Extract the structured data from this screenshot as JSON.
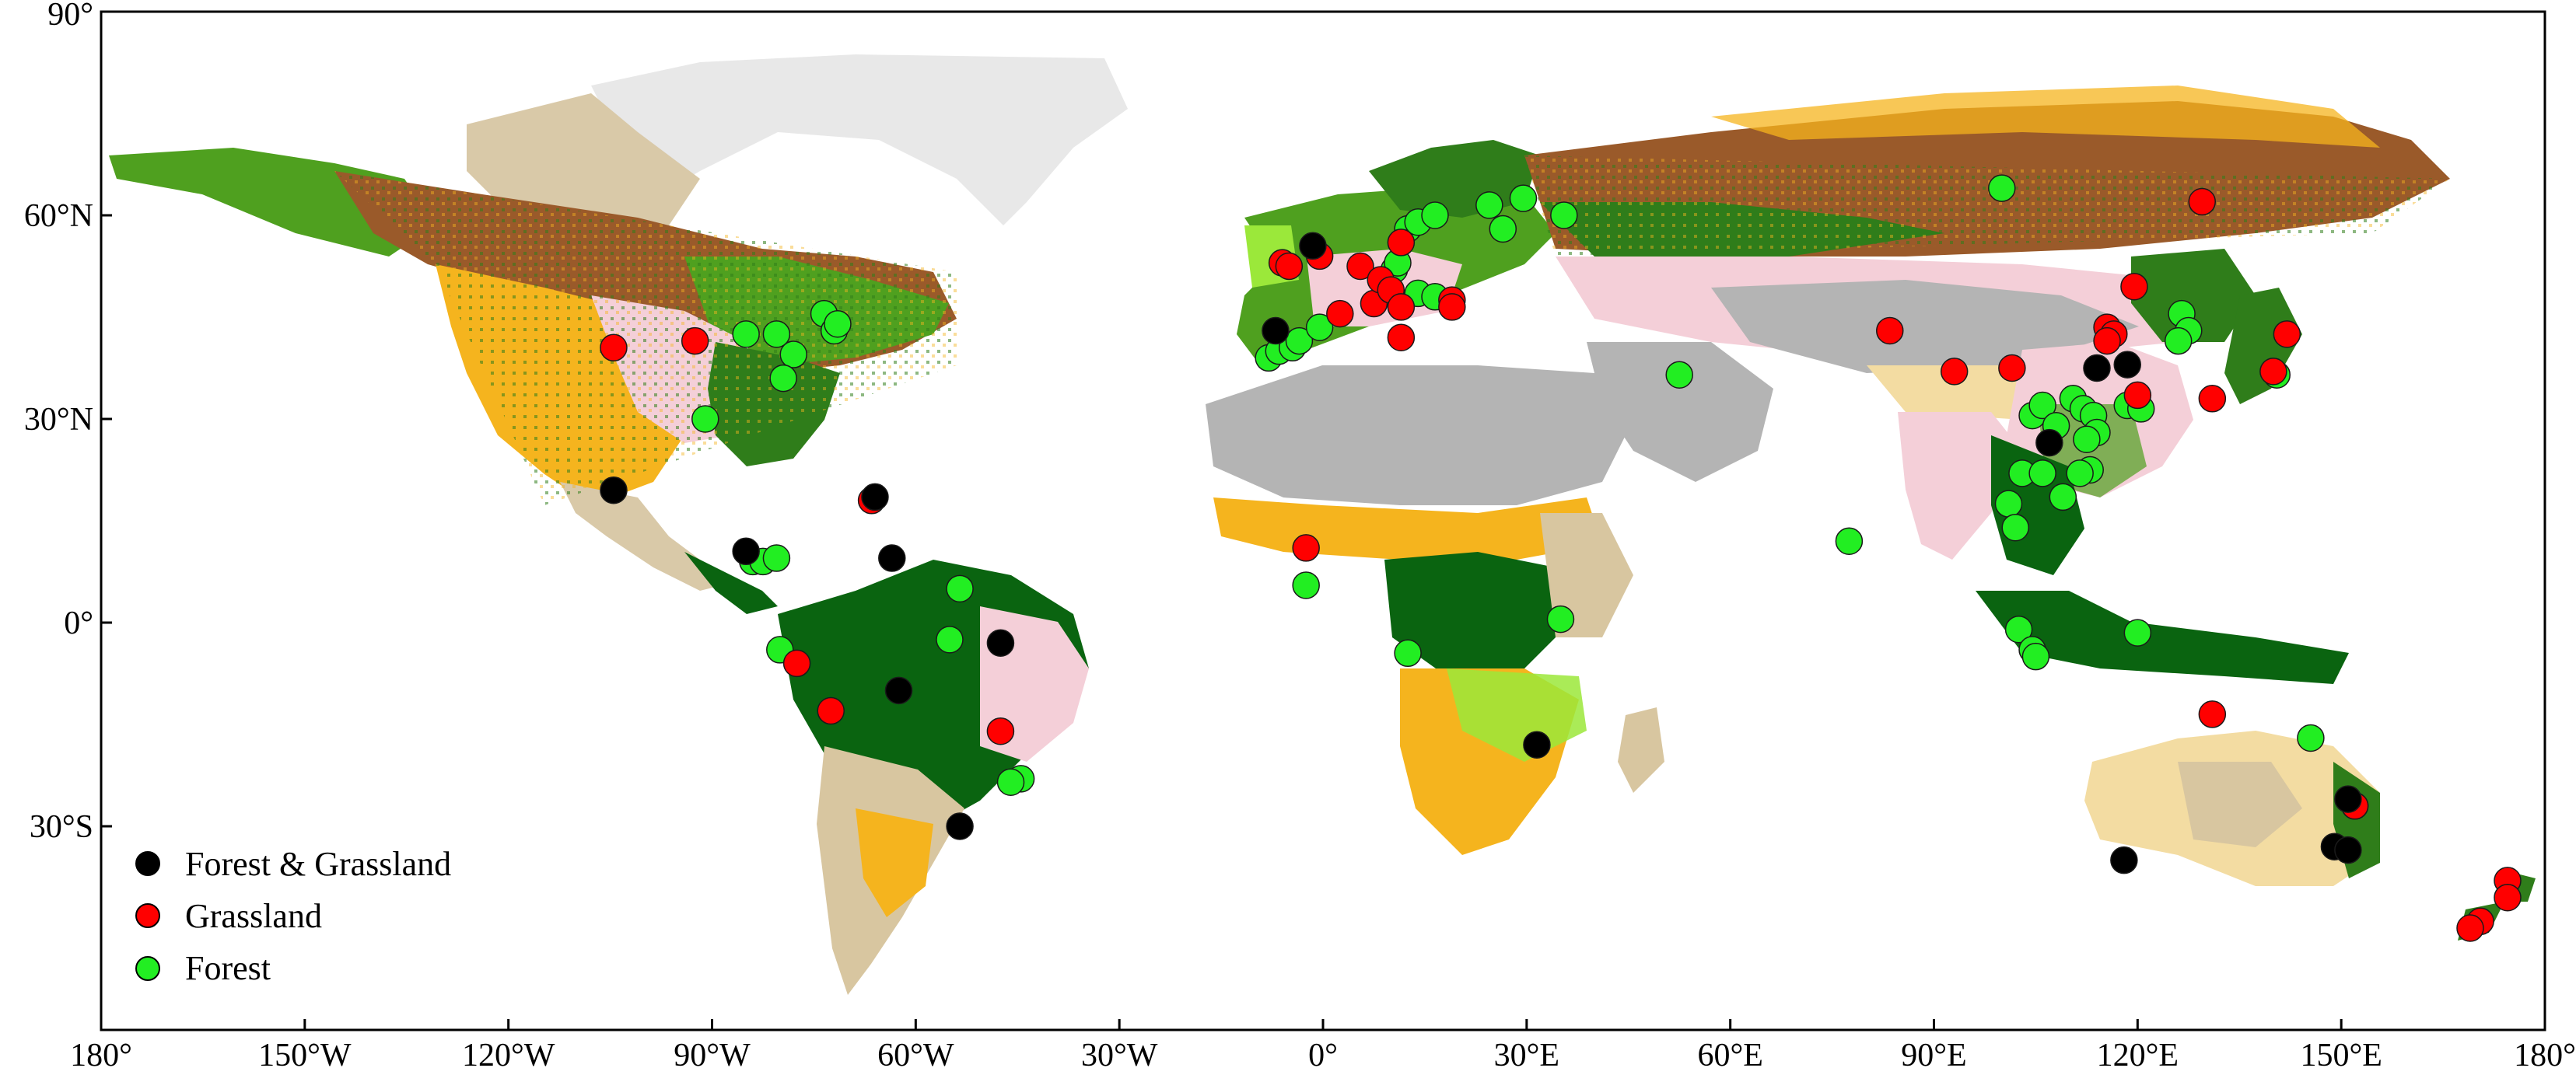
{
  "map": {
    "lon_range": [
      -180,
      180
    ],
    "lat_range": [
      -60,
      90
    ],
    "x_ticks": [
      {
        "value": -180,
        "label": "180°"
      },
      {
        "value": -150,
        "label": "150°W"
      },
      {
        "value": -120,
        "label": "120°W"
      },
      {
        "value": -90,
        "label": "90°W"
      },
      {
        "value": -60,
        "label": "60°W"
      },
      {
        "value": -30,
        "label": "30°W"
      },
      {
        "value": 0,
        "label": "0°"
      },
      {
        "value": 30,
        "label": "30°E"
      },
      {
        "value": 60,
        "label": "60°E"
      },
      {
        "value": 90,
        "label": "90°E"
      },
      {
        "value": 120,
        "label": "120°E"
      },
      {
        "value": 150,
        "label": "150°E"
      },
      {
        "value": 180,
        "label": "180°"
      }
    ],
    "y_ticks": [
      {
        "value": 90,
        "label": "90°"
      },
      {
        "value": 60,
        "label": "60°N"
      },
      {
        "value": 30,
        "label": "30°N"
      },
      {
        "value": 0,
        "label": "0°"
      },
      {
        "value": -30,
        "label": "30°S"
      }
    ],
    "colors": {
      "frame": "#000000",
      "ice": "#e8e8e8",
      "tundra": "#d9c9a8",
      "boreal_forest": "#9a5a2a",
      "mixed_forest": "#4fa01f",
      "temperate_forest": "#2f7d1a",
      "tropical_forest": "#0a6410",
      "savanna_yellow": "#f5b41e",
      "grassland_pale": "#f3dca2",
      "cropland_pink": "#f4cfd8",
      "desert_gray": "#b4b4b4",
      "shrub_beige": "#d8c6a0",
      "magenta_patch": "#e58ae6",
      "light_green": "#9be83a"
    }
  },
  "legend": {
    "items": [
      {
        "label": "Forest & Grassland",
        "color": "#000000",
        "key": "both"
      },
      {
        "label": "Grassland",
        "color": "#ff0000",
        "key": "grassland"
      },
      {
        "label": "Forest",
        "color": "#22ee22",
        "key": "forest"
      }
    ]
  },
  "sites": {
    "both": [
      [
        -104.5,
        19.5
      ],
      [
        -85,
        10.5
      ],
      [
        -66,
        18.5
      ],
      [
        -63.5,
        9.5
      ],
      [
        -62.5,
        -10
      ],
      [
        -47.5,
        -3
      ],
      [
        -53.5,
        -30
      ],
      [
        -7,
        43
      ],
      [
        -1.5,
        55.5
      ],
      [
        31.5,
        -18
      ],
      [
        107,
        26.5
      ],
      [
        114,
        37.5
      ],
      [
        118.5,
        38
      ],
      [
        118,
        -35
      ],
      [
        151,
        -26
      ],
      [
        149,
        -33
      ],
      [
        151,
        -33.5
      ]
    ],
    "grassland": [
      [
        -104.5,
        40.5
      ],
      [
        -92.5,
        41.5
      ],
      [
        -66.5,
        18
      ],
      [
        -77.5,
        -6
      ],
      [
        -72.5,
        -13
      ],
      [
        -47.5,
        -16
      ],
      [
        -2.5,
        11
      ],
      [
        -6,
        53
      ],
      [
        -5,
        52.5
      ],
      [
        -0.5,
        54
      ],
      [
        2.5,
        45.5
      ],
      [
        5.5,
        52.5
      ],
      [
        7.5,
        47
      ],
      [
        8.5,
        50.5
      ],
      [
        10,
        49
      ],
      [
        11.5,
        46.5
      ],
      [
        11.5,
        56
      ],
      [
        11.5,
        42
      ],
      [
        19,
        47.5
      ],
      [
        19,
        46.5
      ],
      [
        83.5,
        43
      ],
      [
        93,
        37
      ],
      [
        101.5,
        37.5
      ],
      [
        115.5,
        43.5
      ],
      [
        116.5,
        42.5
      ],
      [
        115.5,
        41.5
      ],
      [
        120,
        33.5
      ],
      [
        119.5,
        49.5
      ],
      [
        129.5,
        62
      ],
      [
        131,
        33
      ],
      [
        142,
        42.5
      ],
      [
        140,
        37
      ],
      [
        131,
        -13.5
      ],
      [
        152,
        -27
      ],
      [
        174.5,
        -38
      ],
      [
        174.5,
        -40.5
      ],
      [
        170.5,
        -44
      ],
      [
        169,
        -45
      ]
    ],
    "forest": [
      [
        -84,
        9
      ],
      [
        -82.5,
        9
      ],
      [
        -80.5,
        9.5
      ],
      [
        -80,
        -4
      ],
      [
        -91,
        30
      ],
      [
        -85,
        42.5
      ],
      [
        -80.5,
        42.5
      ],
      [
        -78,
        39.5
      ],
      [
        -79.5,
        36
      ],
      [
        -73.5,
        45.5
      ],
      [
        -72,
        43
      ],
      [
        -71.5,
        44
      ],
      [
        -53.5,
        5
      ],
      [
        -55,
        -2.5
      ],
      [
        -44.5,
        -23
      ],
      [
        -46,
        -23.5
      ],
      [
        -8,
        39
      ],
      [
        -6.5,
        40
      ],
      [
        -4.5,
        40.5
      ],
      [
        -3.5,
        41.5
      ],
      [
        -0.5,
        43.5
      ],
      [
        -2.5,
        5.5
      ],
      [
        9.5,
        50.5
      ],
      [
        10.5,
        52
      ],
      [
        11,
        53
      ],
      [
        12.5,
        58
      ],
      [
        14,
        59
      ],
      [
        16.5,
        60
      ],
      [
        14,
        48.5
      ],
      [
        16.5,
        48
      ],
      [
        24.5,
        61.5
      ],
      [
        29.5,
        62.5
      ],
      [
        26.5,
        58
      ],
      [
        35.5,
        60
      ],
      [
        52.5,
        36.5
      ],
      [
        35,
        0.5
      ],
      [
        12.5,
        -4.5
      ],
      [
        100,
        64
      ],
      [
        77.5,
        12
      ],
      [
        104.5,
        30.5
      ],
      [
        106,
        32
      ],
      [
        108,
        29
      ],
      [
        110.5,
        33
      ],
      [
        112,
        31.5
      ],
      [
        113.5,
        30.5
      ],
      [
        114,
        28
      ],
      [
        112.5,
        27
      ],
      [
        113,
        22.5
      ],
      [
        111.5,
        22
      ],
      [
        103,
        22
      ],
      [
        101,
        17.5
      ],
      [
        102,
        14
      ],
      [
        106,
        22
      ],
      [
        109,
        18.5
      ],
      [
        118.5,
        32
      ],
      [
        120.5,
        31.5
      ],
      [
        126.5,
        45.5
      ],
      [
        127.5,
        43
      ],
      [
        126,
        41.5
      ],
      [
        102.5,
        -1
      ],
      [
        104.5,
        -4
      ],
      [
        105,
        -5
      ],
      [
        120,
        -1.5
      ],
      [
        140.5,
        36.5
      ],
      [
        145.5,
        -17
      ],
      [
        152,
        -27
      ]
    ]
  }
}
